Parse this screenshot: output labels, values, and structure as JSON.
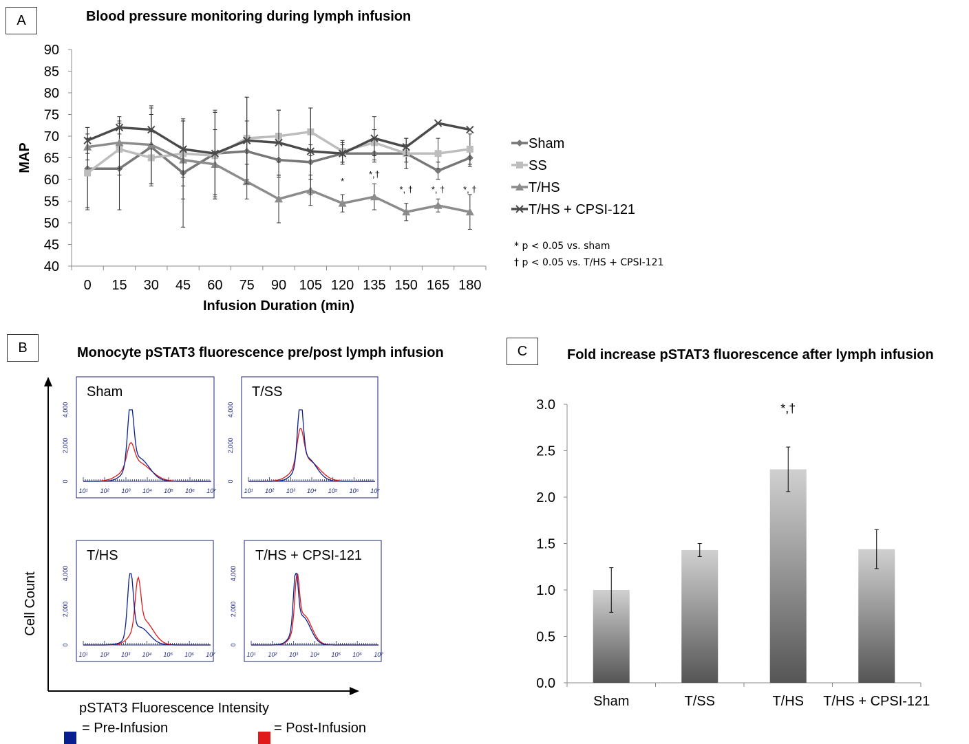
{
  "panel_a": {
    "letter": "A",
    "notes": [
      "* p < 0.05 vs. sham",
      "† p < 0.05 vs. T/HS + CPSI-121"
    ]
  },
  "panel_b": {
    "letter": "B",
    "title": "Monocyte pSTAT3 fluorescence pre/post lymph infusion",
    "ylabel": "Cell Count",
    "xlabel": "pSTAT3 Fluorescence Intensity",
    "legend": [
      {
        "label": "= Pre-Infusion",
        "color": "#0a1f8f"
      },
      {
        "label": "= Post-Infusion",
        "color": "#e01a1a"
      }
    ],
    "histograms": [
      {
        "label": "Sham",
        "yticks": [
          "0",
          "2,000",
          "4,000"
        ],
        "xticks": [
          "10¹",
          "10²",
          "10³",
          "10⁴",
          "10⁵",
          "10⁶",
          "10⁷"
        ]
      },
      {
        "label": "T/SS",
        "yticks": [
          "0",
          "2,000",
          "4,000"
        ],
        "xticks": [
          "10¹",
          "10²",
          "10³",
          "10⁴",
          "10⁵",
          "10⁶",
          "10⁷"
        ]
      },
      {
        "label": "T/HS",
        "yticks": [
          "0",
          "2,000",
          "4,000"
        ],
        "xticks": [
          "10¹",
          "10²",
          "10³",
          "10⁴",
          "10⁵",
          "10⁶",
          "10⁷"
        ]
      },
      {
        "label": "T/HS + CPSI-121",
        "yticks": [
          "0",
          "2,000",
          "4,000"
        ],
        "xticks": [
          "10¹",
          "10²",
          "10³",
          "10⁴",
          "10⁵",
          "10⁶",
          "10⁷"
        ]
      }
    ]
  },
  "panel_c": {
    "letter": "C"
  },
  "chart_data": [
    {
      "type": "line",
      "title": "Blood pressure monitoring during lymph infusion",
      "xlabel": "Infusion Duration (min)",
      "ylabel": "MAP",
      "x": [
        0,
        15,
        30,
        45,
        60,
        75,
        90,
        105,
        120,
        135,
        150,
        165,
        180
      ],
      "ylim": [
        40,
        90
      ],
      "yticks": [
        40,
        45,
        50,
        55,
        60,
        65,
        70,
        75,
        80,
        85,
        90
      ],
      "legend_position": "right",
      "series": [
        {
          "name": "Sham",
          "marker": "diamond",
          "color": "#777777",
          "values": [
            62.5,
            62.5,
            67.5,
            61.5,
            66,
            66.5,
            64.5,
            64,
            66,
            66,
            66,
            62,
            65
          ],
          "err": [
            9.5,
            9.5,
            9,
            12.5,
            10,
            7,
            4,
            4,
            2,
            2,
            2,
            2,
            2
          ]
        },
        {
          "name": "SS",
          "marker": "square",
          "color": "#bdbdbd",
          "values": [
            61.5,
            67,
            65,
            66,
            65.5,
            69.5,
            70,
            71,
            66.5,
            68.5,
            66,
            66,
            67
          ],
          "err": [
            8,
            6,
            6,
            7.5,
            10,
            9.5,
            6,
            5.5,
            2.5,
            3,
            3.5,
            3.5,
            3.5
          ]
        },
        {
          "name": "T/HS",
          "marker": "triangle",
          "color": "#8c8c8c",
          "values": [
            67.5,
            68.5,
            68,
            64.5,
            63.5,
            59.5,
            55.5,
            57.5,
            54.5,
            56,
            52.5,
            54,
            52.5
          ],
          "err": [
            3,
            6,
            9,
            9,
            8,
            4,
            5.5,
            3.5,
            2,
            3,
            2,
            1.5,
            4
          ]
        },
        {
          "name": "T/HS + CPSI-121",
          "marker": "x",
          "color": "#4a4a4a",
          "values": [
            69,
            72,
            71.5,
            67,
            66,
            69,
            68.5,
            66.5,
            66,
            69.5,
            67.5,
            73,
            71.5
          ],
          "err": [
            3,
            1.5,
            3.5,
            6.5,
            9.5,
            10,
            7.5,
            10,
            2.5,
            5,
            2,
            0,
            0
          ]
        }
      ],
      "annotations": [
        {
          "x": 120,
          "text": "*"
        },
        {
          "x": 135,
          "text": "*,†"
        },
        {
          "x": 150,
          "text": "*, †"
        },
        {
          "x": 165,
          "text": "*, †"
        },
        {
          "x": 180,
          "text": "*, †"
        }
      ]
    },
    {
      "type": "bar",
      "title": "Fold increase pSTAT3 fluorescence after lymph infusion",
      "categories": [
        "Sham",
        "T/SS",
        "T/HS",
        "T/HS + CPSI-121"
      ],
      "values": [
        1.0,
        1.43,
        2.3,
        1.44
      ],
      "err": [
        0.24,
        0.07,
        0.24,
        0.21
      ],
      "ylim": [
        0,
        3.0
      ],
      "yticks": [
        "0.0",
        "0.5",
        "1.0",
        "1.5",
        "2.0",
        "2.5",
        "3.0"
      ],
      "annotations": [
        {
          "category": "T/HS",
          "text": "*,†"
        }
      ]
    }
  ]
}
